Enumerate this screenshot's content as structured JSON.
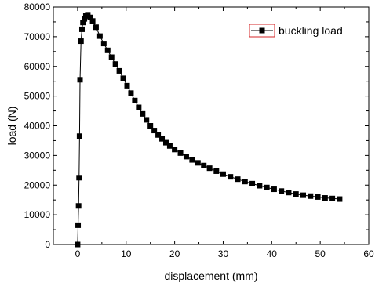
{
  "chart_data": {
    "type": "line",
    "title": "",
    "xlabel": "displacement (mm)",
    "ylabel": "load (N)",
    "xlim": [
      -5,
      60
    ],
    "ylim": [
      0,
      80000
    ],
    "xticks": [
      0,
      10,
      20,
      30,
      40,
      50,
      60
    ],
    "yticks": [
      0,
      10000,
      20000,
      30000,
      40000,
      50000,
      60000,
      70000,
      80000
    ],
    "xtick_labels": [
      "0",
      "10",
      "20",
      "30",
      "40",
      "50",
      "60"
    ],
    "ytick_labels": [
      "0",
      "10000",
      "20000",
      "30000",
      "40000",
      "50000",
      "60000",
      "70000",
      "80000"
    ],
    "grid": false,
    "legend": "top-right",
    "marker": "square",
    "colors": {
      "series": "#000000",
      "legend_border": "#d62728"
    },
    "series": [
      {
        "name": "buckling load",
        "x": [
          0,
          0.1,
          0.2,
          0.3,
          0.4,
          0.5,
          0.7,
          0.9,
          1.1,
          1.4,
          1.7,
          2.1,
          2.6,
          3.1,
          3.8,
          4.6,
          5.4,
          6.2,
          7.0,
          7.8,
          8.6,
          9.4,
          10.2,
          11.0,
          11.8,
          12.6,
          13.4,
          14.2,
          15.0,
          15.8,
          16.6,
          17.4,
          18.2,
          19.0,
          20.0,
          21.2,
          22.4,
          23.6,
          24.8,
          26.0,
          27.2,
          28.6,
          30.0,
          31.5,
          33.0,
          34.5,
          36.0,
          37.5,
          39.0,
          40.5,
          42.0,
          43.5,
          45.0,
          46.5,
          48.0,
          49.5,
          51.0,
          52.5,
          54.0
        ],
        "y": [
          0,
          6500,
          13000,
          22500,
          36500,
          55500,
          68500,
          72500,
          74800,
          76000,
          77000,
          77400,
          76500,
          75300,
          73200,
          70200,
          67700,
          65400,
          63100,
          60800,
          58500,
          56000,
          53500,
          51000,
          48500,
          46200,
          44000,
          42000,
          40000,
          38400,
          36900,
          35600,
          34300,
          33200,
          32000,
          30800,
          29600,
          28500,
          27500,
          26600,
          25700,
          24700,
          23700,
          22800,
          22000,
          21200,
          20500,
          19800,
          19200,
          18600,
          18000,
          17500,
          17000,
          16600,
          16300,
          16000,
          15700,
          15500,
          15300
        ]
      }
    ]
  }
}
